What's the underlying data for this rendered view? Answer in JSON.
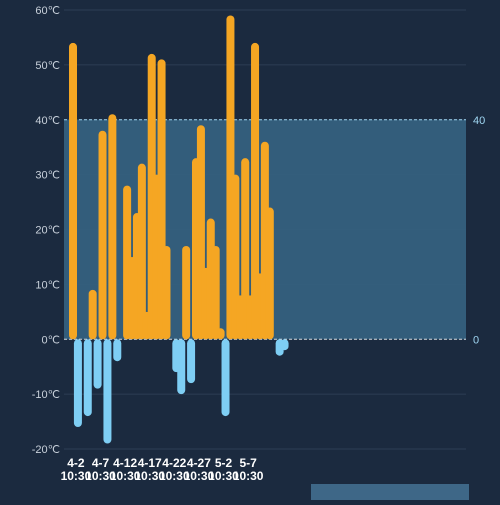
{
  "chart_data": {
    "type": "bar",
    "title": "",
    "xlabel": "",
    "ylabel": "",
    "ylim": [
      -20,
      60
    ],
    "y_unit": "℃",
    "y_ticks": [
      60,
      50,
      40,
      30,
      20,
      10,
      0,
      -10,
      -20
    ],
    "y_tick_labels": [
      "60℃",
      "50℃",
      "40℃",
      "30℃",
      "20℃",
      "10℃",
      "0℃",
      "-10℃",
      "-20℃"
    ],
    "x_tick_labels": [
      {
        "date": "4-2",
        "time": "10:30",
        "index": 1
      },
      {
        "date": "4-7",
        "time": "10:30",
        "index": 6
      },
      {
        "date": "4-12",
        "time": "10:30",
        "index": 11
      },
      {
        "date": "4-17",
        "time": "10:30",
        "index": 16
      },
      {
        "date": "4-22",
        "time": "10:30",
        "index": 21
      },
      {
        "date": "4-27",
        "time": "10:30",
        "index": 26
      },
      {
        "date": "5-2",
        "time": "10:30",
        "index": 31
      },
      {
        "date": "5-7",
        "time": "10:30",
        "index": 36
      }
    ],
    "band": {
      "low": 0,
      "high": 40,
      "label_low": "0",
      "label_high": "40"
    },
    "grid": true,
    "values": [
      54,
      -16,
      0,
      -14,
      9,
      -9,
      38,
      -19,
      41,
      -4,
      0,
      28,
      15,
      23,
      32,
      5,
      52,
      30,
      51,
      17,
      0,
      -6,
      -10,
      17,
      -8,
      33,
      39,
      13,
      22,
      17,
      2,
      -14,
      59,
      30,
      8,
      33,
      8,
      54,
      12,
      36,
      24,
      0,
      -3,
      -2
    ],
    "colors": {
      "positive": "#f5a623",
      "negative": "#7ecef4",
      "band": "#35607e",
      "band_line": "#9fd6f2",
      "axis_text": "#c9d1db",
      "tick_text": "#ffffff",
      "grid": "#2c3d55",
      "slider": "#3e6787"
    }
  }
}
